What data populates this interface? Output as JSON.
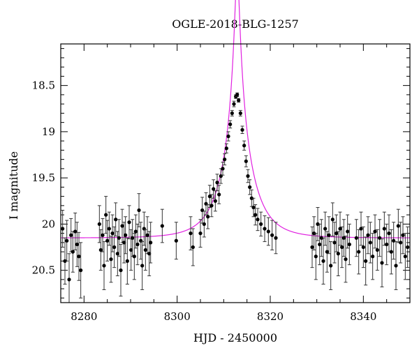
{
  "chart_data": {
    "type": "scatter",
    "title": "OGLE-2018-BLG-1257",
    "xlabel": "HJD - 2450000",
    "ylabel": "I magnitude",
    "xlim": [
      8275,
      8350
    ],
    "ylim": [
      20.85,
      18.05
    ],
    "y_inverted": true,
    "x_ticks": [
      8280,
      8300,
      8320,
      8340
    ],
    "x_tick_labels": [
      "8280",
      "8300",
      "8320",
      "8340"
    ],
    "y_ticks": [
      18.5,
      19,
      19.5,
      20,
      20.5
    ],
    "y_tick_labels": [
      "18.5",
      "19",
      "19.5",
      "20",
      "20.5"
    ],
    "grid": false,
    "colors": {
      "points": "#000000",
      "model": "#e020e0"
    },
    "model": {
      "name": "",
      "type": "point-lens",
      "t0": 8312.9,
      "u0": 0.07,
      "tE": 6.0,
      "baseline_mag": 20.15
    },
    "series": [
      {
        "name": "",
        "x": [
          8275.4,
          8275.9,
          8276.3,
          8276.8,
          8277.2,
          8277.6,
          8278.1,
          8278.5,
          8278.9,
          8279.3,
          8283.3,
          8283.6,
          8284.0,
          8284.3,
          8284.7,
          8285.0,
          8285.4,
          8285.8,
          8286.1,
          8286.5,
          8286.8,
          8287.2,
          8287.5,
          8287.9,
          8288.2,
          8288.6,
          8288.9,
          8289.3,
          8289.7,
          8290.1,
          8290.4,
          8290.8,
          8291.1,
          8291.5,
          8291.8,
          8292.2,
          8292.5,
          8292.9,
          8293.2,
          8293.6,
          8294.0,
          8294.3,
          8296.8,
          8299.8,
          8302.9,
          8303.4,
          8305.0,
          8305.4,
          8305.8,
          8306.2,
          8306.6,
          8307.0,
          8307.4,
          8307.8,
          8308.2,
          8308.6,
          8309.0,
          8309.4,
          8309.8,
          8310.2,
          8310.6,
          8311.0,
          8311.4,
          8311.8,
          8312.2,
          8312.6,
          8312.9,
          8313.2,
          8313.6,
          8314.0,
          8314.4,
          8314.8,
          8315.2,
          8315.6,
          8316.0,
          8316.4,
          8316.8,
          8317.3,
          8318.0,
          8318.8,
          8319.6,
          8320.4,
          8321.2,
          8329.0,
          8329.4,
          8329.8,
          8330.2,
          8330.6,
          8331.0,
          8331.4,
          8331.8,
          8332.2,
          8332.6,
          8333.0,
          8333.4,
          8333.8,
          8334.2,
          8334.6,
          8335.0,
          8335.4,
          8335.8,
          8336.2,
          8336.6,
          8337.0,
          8338.5,
          8339.0,
          8339.5,
          8340.0,
          8340.5,
          8341.0,
          8341.5,
          8342.0,
          8342.5,
          8343.0,
          8343.5,
          8344.0,
          8344.5,
          8345.0,
          8345.5,
          8346.0,
          8346.5,
          8347.0,
          8347.5,
          8348.0,
          8348.5,
          8349.0,
          8349.5
        ],
        "y": [
          20.05,
          20.4,
          20.18,
          20.6,
          20.12,
          20.3,
          20.08,
          20.22,
          20.35,
          20.5,
          20.0,
          20.28,
          20.12,
          20.45,
          19.9,
          20.18,
          20.05,
          20.38,
          20.1,
          20.25,
          19.95,
          20.32,
          20.15,
          20.5,
          20.02,
          20.2,
          20.12,
          20.4,
          19.98,
          20.28,
          20.15,
          20.35,
          20.08,
          20.22,
          19.85,
          20.18,
          20.45,
          20.05,
          20.28,
          20.12,
          20.32,
          20.2,
          20.02,
          20.18,
          20.1,
          20.25,
          20.1,
          19.85,
          20.0,
          19.78,
          19.92,
          19.7,
          19.8,
          19.62,
          19.75,
          19.55,
          19.68,
          19.48,
          19.4,
          19.3,
          19.18,
          19.05,
          18.92,
          18.8,
          18.7,
          18.62,
          18.6,
          18.66,
          18.8,
          18.98,
          19.15,
          19.32,
          19.48,
          19.6,
          19.72,
          19.82,
          19.9,
          19.95,
          20.0,
          20.05,
          20.08,
          20.12,
          20.15,
          20.25,
          20.1,
          20.35,
          20.0,
          20.22,
          20.15,
          20.4,
          20.05,
          20.3,
          20.12,
          20.45,
          19.95,
          20.2,
          20.1,
          20.32,
          20.05,
          20.25,
          20.15,
          20.38,
          20.08,
          20.22,
          20.15,
          20.3,
          20.05,
          20.25,
          20.4,
          20.12,
          20.2,
          20.35,
          20.08,
          20.28,
          20.15,
          20.42,
          20.05,
          20.22,
          20.1,
          20.3,
          20.18,
          20.45,
          20.02,
          20.2,
          20.12,
          20.35,
          20.25
        ],
        "yerr": [
          0.2,
          0.25,
          0.22,
          0.28,
          0.18,
          0.22,
          0.2,
          0.24,
          0.26,
          0.3,
          0.2,
          0.22,
          0.18,
          0.26,
          0.2,
          0.22,
          0.18,
          0.25,
          0.2,
          0.22,
          0.18,
          0.24,
          0.2,
          0.28,
          0.18,
          0.22,
          0.2,
          0.25,
          0.18,
          0.22,
          0.2,
          0.25,
          0.18,
          0.22,
          0.18,
          0.2,
          0.26,
          0.18,
          0.22,
          0.2,
          0.24,
          0.22,
          0.18,
          0.2,
          0.18,
          0.2,
          0.15,
          0.14,
          0.14,
          0.12,
          0.13,
          0.12,
          0.12,
          0.1,
          0.11,
          0.09,
          0.1,
          0.08,
          0.07,
          0.06,
          0.05,
          0.05,
          0.04,
          0.03,
          0.03,
          0.02,
          0.02,
          0.02,
          0.03,
          0.04,
          0.05,
          0.06,
          0.07,
          0.08,
          0.09,
          0.1,
          0.11,
          0.12,
          0.13,
          0.14,
          0.15,
          0.16,
          0.17,
          0.22,
          0.18,
          0.25,
          0.18,
          0.22,
          0.2,
          0.25,
          0.18,
          0.22,
          0.2,
          0.26,
          0.18,
          0.22,
          0.2,
          0.24,
          0.18,
          0.22,
          0.2,
          0.25,
          0.18,
          0.22,
          0.2,
          0.24,
          0.18,
          0.22,
          0.26,
          0.2,
          0.22,
          0.25,
          0.18,
          0.22,
          0.2,
          0.26,
          0.18,
          0.22,
          0.2,
          0.24,
          0.2,
          0.26,
          0.18,
          0.22,
          0.2,
          0.25,
          0.22
        ]
      }
    ]
  }
}
